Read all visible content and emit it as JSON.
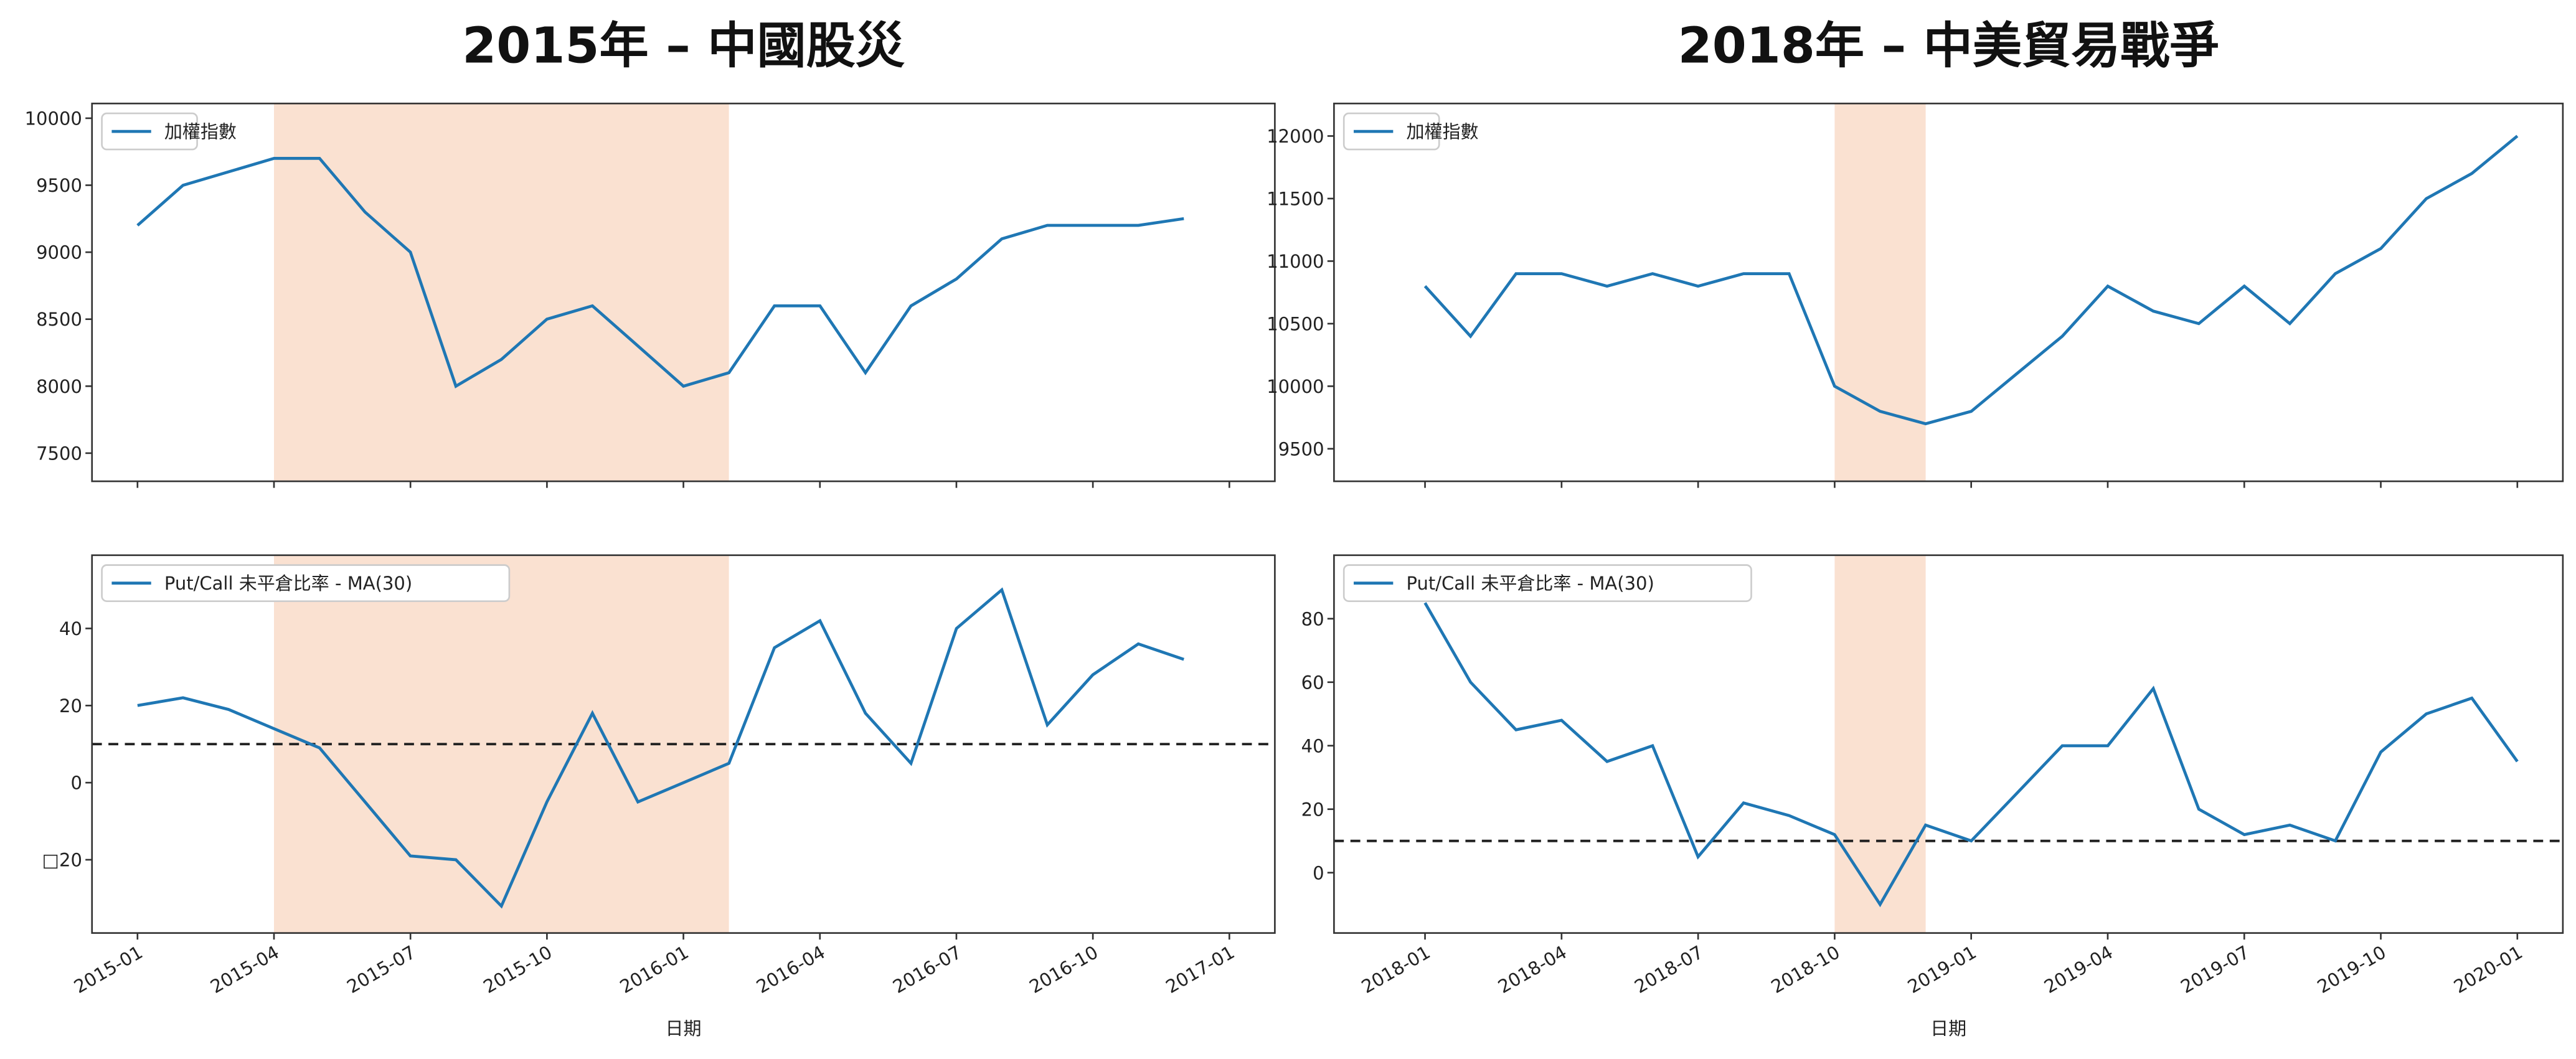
{
  "chart_data": [
    {
      "type": "line",
      "title": "2015年 – 中國股災",
      "x": [
        "2015-01",
        "2015-02",
        "2015-03",
        "2015-04",
        "2015-05",
        "2015-06",
        "2015-07",
        "2015-08",
        "2015-09",
        "2015-10",
        "2015-11",
        "2015-12",
        "2016-01",
        "2016-02",
        "2016-03",
        "2016-04",
        "2016-05",
        "2016-06",
        "2016-07",
        "2016-08",
        "2016-09",
        "2016-10",
        "2016-11",
        "2016-12"
      ],
      "series": [
        {
          "name": "加權指數",
          "color": "#1f77b4",
          "values": [
            9200,
            9500,
            9600,
            9700,
            9700,
            9300,
            9000,
            8000,
            8200,
            8500,
            8600,
            8300,
            8000,
            8100,
            8600,
            8600,
            8100,
            8600,
            8800,
            9100,
            9200,
            9200,
            9200,
            9250
          ]
        }
      ],
      "xlim": [
        "2014-12",
        "2017-02"
      ],
      "ylim": [
        7290,
        10110
      ],
      "yticks": [
        7500,
        8000,
        8500,
        9000,
        9500,
        10000
      ],
      "highlight": [
        "2015-04",
        "2016-02"
      ],
      "legend": "upper left"
    },
    {
      "type": "line",
      "xlabel": "日期",
      "x": [
        "2015-01",
        "2015-02",
        "2015-03",
        "2015-04",
        "2015-05",
        "2015-06",
        "2015-07",
        "2015-08",
        "2015-09",
        "2015-10",
        "2015-11",
        "2015-12",
        "2016-01",
        "2016-02",
        "2016-03",
        "2016-04",
        "2016-05",
        "2016-06",
        "2016-07",
        "2016-08",
        "2016-09",
        "2016-10",
        "2016-11",
        "2016-12"
      ],
      "series": [
        {
          "name": "Put/Call 未平倉比率 - MA(30)",
          "color": "#1f77b4",
          "values": [
            20,
            22,
            19,
            14,
            9,
            -5,
            -19,
            -20,
            -32,
            -5,
            18,
            -5,
            0,
            5,
            35,
            42,
            18,
            5,
            40,
            50,
            15,
            28,
            36,
            32
          ]
        }
      ],
      "xlim": [
        "2014-12",
        "2017-02"
      ],
      "ylim": [
        -39,
        59
      ],
      "yticks": [
        {
          "value": -20,
          "label": "□20"
        },
        0,
        20,
        40
      ],
      "xticks": [
        "2015-01",
        "2015-04",
        "2015-07",
        "2015-10",
        "2016-01",
        "2016-04",
        "2016-07",
        "2016-10",
        "2017-01"
      ],
      "hline": 10,
      "highlight": [
        "2015-04",
        "2016-02"
      ],
      "legend": "upper left"
    },
    {
      "type": "line",
      "title": "2018年 – 中美貿易戰爭",
      "x": [
        "2018-01",
        "2018-02",
        "2018-03",
        "2018-04",
        "2018-05",
        "2018-06",
        "2018-07",
        "2018-08",
        "2018-09",
        "2018-10",
        "2018-11",
        "2018-12",
        "2019-01",
        "2019-02",
        "2019-03",
        "2019-04",
        "2019-05",
        "2019-06",
        "2019-07",
        "2019-08",
        "2019-09",
        "2019-10",
        "2019-11",
        "2019-12",
        "2020-01"
      ],
      "series": [
        {
          "name": "加權指數",
          "color": "#1f77b4",
          "values": [
            10800,
            10400,
            10900,
            10900,
            10800,
            10900,
            10800,
            10900,
            10900,
            10000,
            9800,
            9700,
            9800,
            10100,
            10400,
            10800,
            10600,
            10500,
            10800,
            10500,
            10900,
            11100,
            11500,
            11700,
            12000
          ]
        }
      ],
      "xlim": [
        "2017-11",
        "2020-02"
      ],
      "ylim": [
        9240,
        12260
      ],
      "yticks": [
        9500,
        10000,
        10500,
        11000,
        11500,
        12000
      ],
      "highlight": [
        "2018-10",
        "2018-12"
      ],
      "legend": "upper left"
    },
    {
      "type": "line",
      "xlabel": "日期",
      "x": [
        "2018-01",
        "2018-02",
        "2018-03",
        "2018-04",
        "2018-05",
        "2018-06",
        "2018-07",
        "2018-08",
        "2018-09",
        "2018-10",
        "2018-11",
        "2018-12",
        "2019-01",
        "2019-02",
        "2019-03",
        "2019-04",
        "2019-05",
        "2019-06",
        "2019-07",
        "2019-08",
        "2019-09",
        "2019-10",
        "2019-11",
        "2019-12",
        "2020-01"
      ],
      "series": [
        {
          "name": "Put/Call 未平倉比率 - MA(30)",
          "color": "#1f77b4",
          "values": [
            85,
            60,
            45,
            48,
            35,
            40,
            5,
            22,
            18,
            12,
            -10,
            15,
            10,
            25,
            40,
            40,
            58,
            20,
            12,
            15,
            10,
            38,
            50,
            55,
            35
          ]
        }
      ],
      "xlim": [
        "2017-11",
        "2020-02"
      ],
      "ylim": [
        -19,
        100
      ],
      "yticks": [
        0,
        20,
        40,
        60,
        80
      ],
      "xticks": [
        "2018-01",
        "2018-04",
        "2018-07",
        "2018-10",
        "2019-01",
        "2019-04",
        "2019-07",
        "2019-10",
        "2020-01"
      ],
      "hline": 10,
      "highlight": [
        "2018-10",
        "2018-12"
      ],
      "legend": "upper left"
    }
  ]
}
